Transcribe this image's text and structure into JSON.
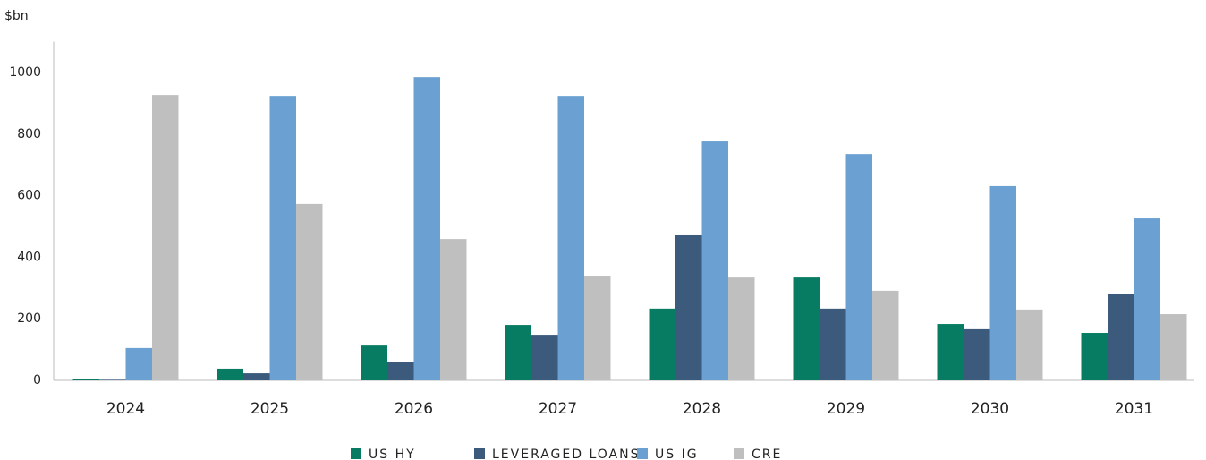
{
  "chart_data": {
    "type": "bar",
    "y_label": "$bn",
    "categories": [
      "2024",
      "2025",
      "2026",
      "2027",
      "2028",
      "2029",
      "2030",
      "2031"
    ],
    "series": [
      {
        "name": "US HY",
        "color": "#077c63",
        "values": [
          5,
          38,
          113,
          180,
          233,
          334,
          183,
          154
        ]
      },
      {
        "name": "LEVERAGED LOANS",
        "color": "#3b5a7c",
        "values": [
          2,
          23,
          61,
          148,
          471,
          233,
          166,
          282
        ]
      },
      {
        "name": "US IG",
        "color": "#6aa0d2",
        "values": [
          105,
          924,
          985,
          924,
          776,
          735,
          631,
          526
        ]
      },
      {
        "name": "CRE",
        "color": "#bfbfbf",
        "values": [
          927,
          573,
          459,
          340,
          334,
          291,
          230,
          215
        ]
      }
    ],
    "ylim": [
      0,
      1100
    ],
    "yticks": [
      0,
      200,
      400,
      600,
      800,
      1000
    ],
    "grid": false,
    "legend": "bottom"
  }
}
